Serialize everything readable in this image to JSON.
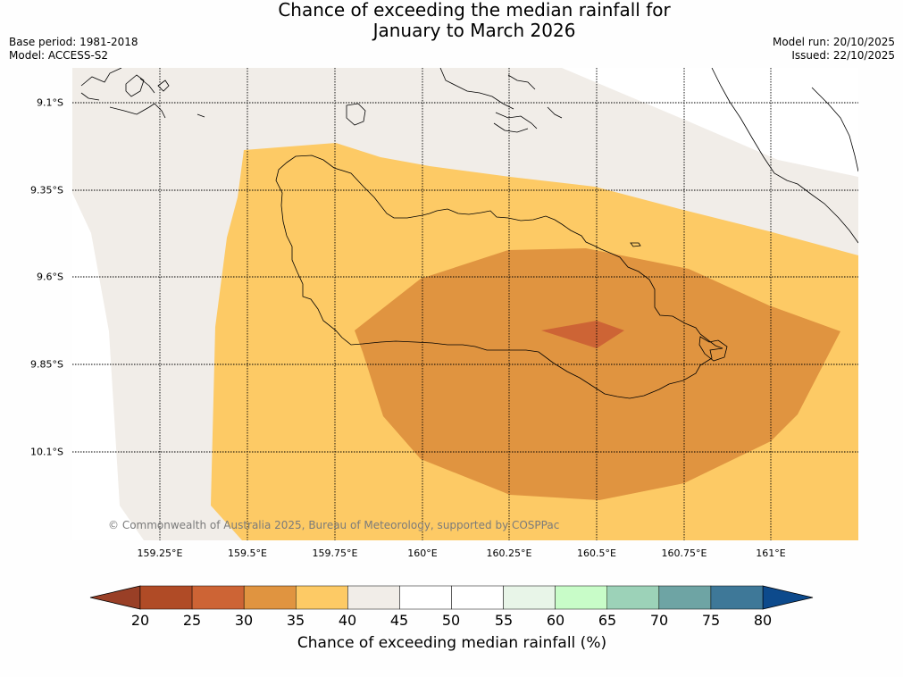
{
  "title": {
    "line1": "Chance of exceeding the median rainfall for",
    "line2": "January to March 2026"
  },
  "meta_left": {
    "base_period": "Base period: 1981-2018",
    "model": "Model: ACCESS-S2"
  },
  "meta_right": {
    "model_run": "Model run: 20/10/2025",
    "issued": "Issued: 22/10/2025"
  },
  "map": {
    "latitude_labels": [
      "9.1°S",
      "9.35°S",
      "9.6°S",
      "9.85°S",
      "10.1°S"
    ],
    "longitude_labels": [
      "159.25°E",
      "159.5°E",
      "159.75°E",
      "160°E",
      "160.25°E",
      "160.5°E",
      "160.75°E",
      "161°E"
    ],
    "copyright": "© Commonwealth of Australia 2025, Bureau of Meteorology, supported by COSPPac",
    "zones": [
      {
        "name": "35-40",
        "color": "#fdca65"
      },
      {
        "name": "30-35",
        "color": "#e09440"
      },
      {
        "name": "25-30",
        "color": "#cd6435"
      },
      {
        "name": "40-45",
        "color": "#f1ede8"
      }
    ]
  },
  "colorbar": {
    "ticks": [
      "20",
      "25",
      "30",
      "35",
      "40",
      "45",
      "50",
      "55",
      "60",
      "65",
      "70",
      "75",
      "80"
    ],
    "low_extend_color": "#993f26",
    "high_extend_color": "#0d4a8c",
    "bins": [
      {
        "range": "20-25",
        "color": "#b04b26"
      },
      {
        "range": "25-30",
        "color": "#cd6435"
      },
      {
        "range": "30-35",
        "color": "#e09440"
      },
      {
        "range": "35-40",
        "color": "#fdca65"
      },
      {
        "range": "40-45",
        "color": "#f1ede8"
      },
      {
        "range": "45-50",
        "color": "#ffffff"
      },
      {
        "range": "50-55",
        "color": "#ffffff"
      },
      {
        "range": "55-60",
        "color": "#e8f5e8"
      },
      {
        "range": "60-65",
        "color": "#c8fcc8"
      },
      {
        "range": "65-70",
        "color": "#9cd2b8"
      },
      {
        "range": "70-75",
        "color": "#6ea4a4"
      },
      {
        "range": "75-80",
        "color": "#3e7898"
      }
    ],
    "label": "Chance of exceeding median rainfall (%)"
  }
}
